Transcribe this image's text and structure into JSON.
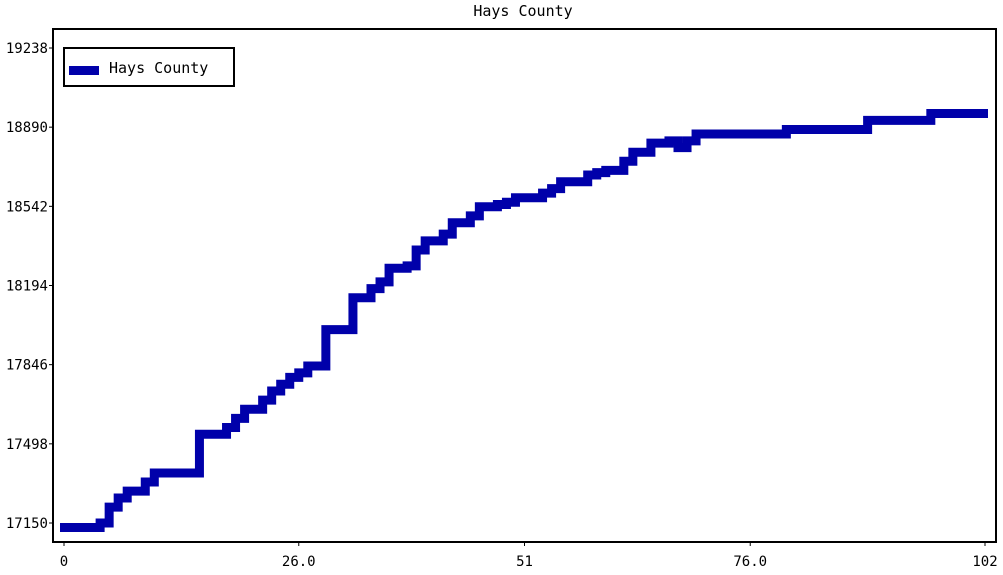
{
  "chart_data": {
    "type": "line",
    "title": "Hays County",
    "xlabel": "",
    "ylabel": "",
    "xlim": [
      0,
      102
    ],
    "ylim": [
      17150,
      19238
    ],
    "x_ticks": [
      "0",
      "26.0",
      "51",
      "76.0",
      "102"
    ],
    "x_tick_values": [
      0,
      26,
      51,
      76,
      102
    ],
    "y_ticks": [
      "17150",
      "17498",
      "17846",
      "18194",
      "18542",
      "18890",
      "19238"
    ],
    "y_tick_values": [
      17150,
      17498,
      17846,
      18194,
      18542,
      18890,
      19238
    ],
    "grid": false,
    "legend": {
      "position": "top-left"
    },
    "series": [
      {
        "name": "Hays County",
        "color": "#0000aa",
        "x": [
          0,
          1,
          2,
          3,
          4,
          5,
          6,
          7,
          8,
          9,
          10,
          11,
          12,
          13,
          14,
          15,
          16,
          17,
          18,
          19,
          20,
          21,
          22,
          23,
          24,
          25,
          26,
          27,
          28,
          29,
          30,
          31,
          32,
          33,
          34,
          35,
          36,
          37,
          38,
          39,
          40,
          41,
          42,
          43,
          44,
          45,
          46,
          47,
          48,
          49,
          50,
          51,
          52,
          53,
          54,
          55,
          56,
          57,
          58,
          59,
          60,
          61,
          62,
          63,
          64,
          65,
          66,
          67,
          68,
          69,
          70,
          71,
          72,
          73,
          74,
          75,
          76,
          77,
          78,
          79,
          80,
          81,
          82,
          83,
          84,
          85,
          86,
          87,
          88,
          89,
          90,
          91,
          92,
          93,
          94,
          95,
          96,
          97,
          98,
          99,
          100,
          101,
          102
        ],
        "y": [
          17130,
          17130,
          17130,
          17130,
          17150,
          17220,
          17260,
          17290,
          17290,
          17330,
          17370,
          17370,
          17370,
          17370,
          17370,
          17540,
          17540,
          17540,
          17570,
          17610,
          17650,
          17650,
          17690,
          17730,
          17760,
          17790,
          17810,
          17840,
          17840,
          18000,
          18000,
          18000,
          18140,
          18140,
          18180,
          18210,
          18270,
          18270,
          18280,
          18350,
          18390,
          18390,
          18420,
          18470,
          18470,
          18500,
          18540,
          18540,
          18550,
          18560,
          18580,
          18580,
          18580,
          18600,
          18620,
          18650,
          18650,
          18650,
          18680,
          18690,
          18700,
          18700,
          18740,
          18780,
          18780,
          18820,
          18820,
          18830,
          18800,
          18830,
          18860,
          18860,
          18860,
          18860,
          18860,
          18860,
          18860,
          18860,
          18860,
          18860,
          18880,
          18880,
          18880,
          18880,
          18880,
          18880,
          18880,
          18880,
          18880,
          18920,
          18920,
          18920,
          18920,
          18920,
          18920,
          18920,
          18950,
          18950,
          18950,
          18950,
          18950,
          18950,
          18950
        ]
      }
    ]
  }
}
